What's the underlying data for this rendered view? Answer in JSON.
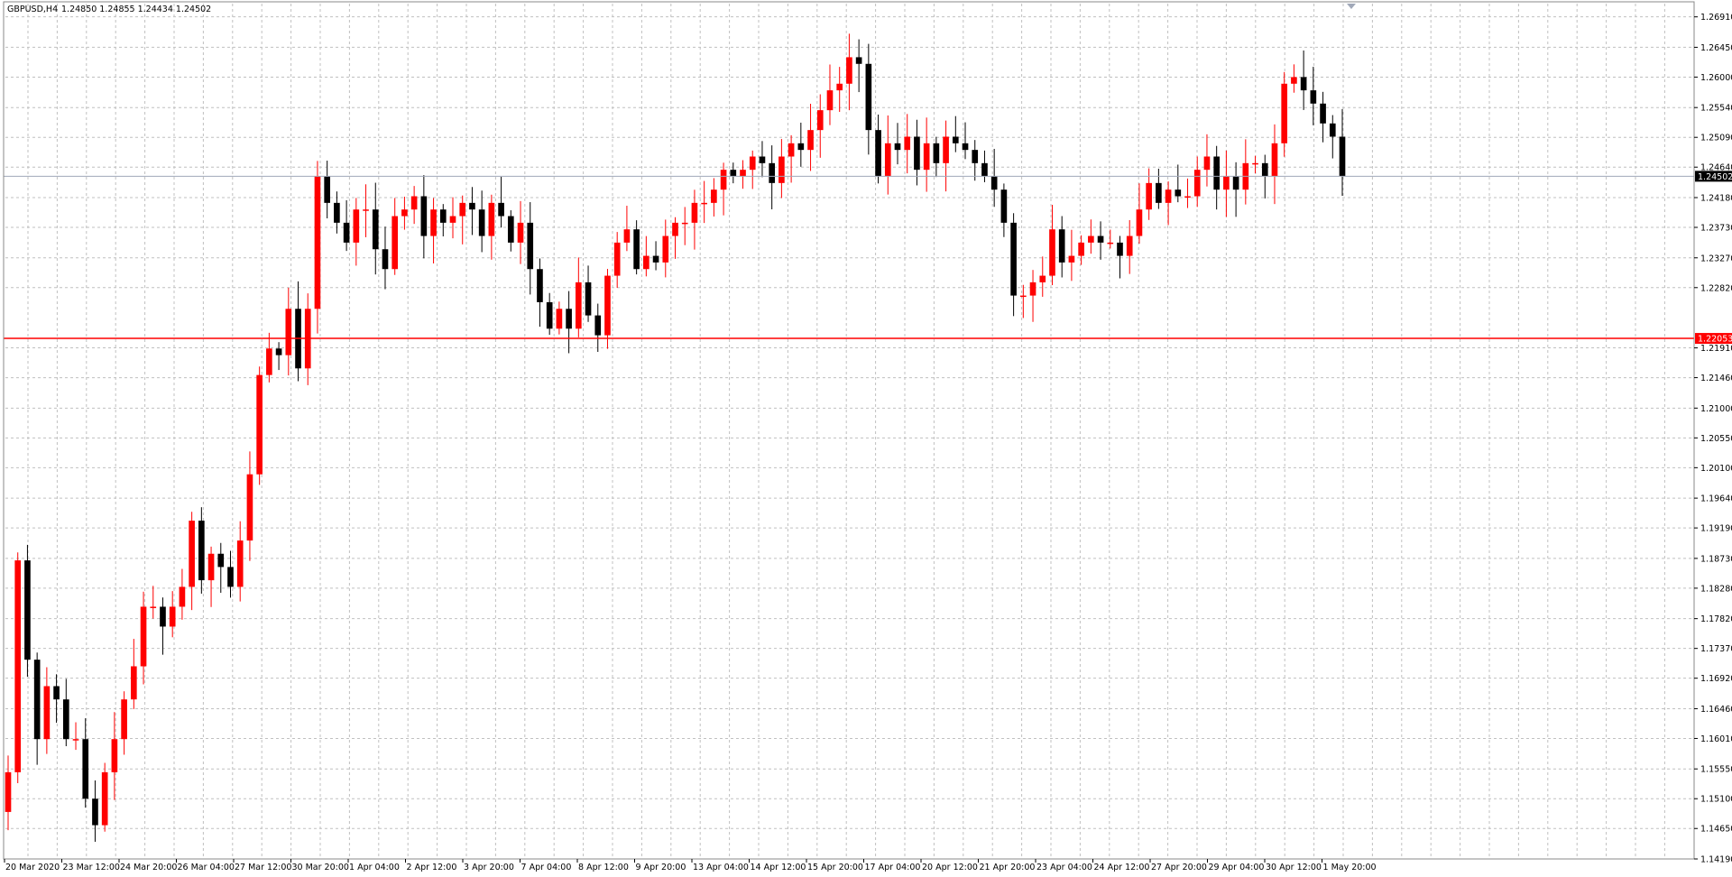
{
  "header": {
    "symbol": "GBPUSD,H4",
    "ohlc": "1.24850 1.24855 1.24434 1.24502"
  },
  "colors": {
    "bull": "#ff0000",
    "bear": "#000000",
    "grid": "#c0c0c0",
    "background": "#ffffff",
    "level_line": "#ff0000",
    "bid_line": "#a0a8b8"
  },
  "chart_data": {
    "type": "candlestick",
    "symbol": "GBPUSD",
    "timeframe": "H4",
    "ylim": [
      1.1419,
      1.2711
    ],
    "grid": true,
    "price_ticks": [
      "1.26910",
      "1.26450",
      "1.26000",
      "1.25540",
      "1.25090",
      "1.24640",
      "1.24180",
      "1.23730",
      "1.23270",
      "1.22820",
      "1.21910",
      "1.21460",
      "1.21000",
      "1.20550",
      "1.20100",
      "1.19640",
      "1.19190",
      "1.18730",
      "1.18280",
      "1.17820",
      "1.17370",
      "1.16920",
      "1.16460",
      "1.16010",
      "1.15550",
      "1.15100",
      "1.14650",
      "1.14190"
    ],
    "time_labels": [
      "20 Mar 2020",
      "23 Mar 12:00",
      "24 Mar 20:00",
      "26 Mar 04:00",
      "27 Mar 12:00",
      "30 Mar 20:00",
      "1 Apr 04:00",
      "2 Apr 12:00",
      "3 Apr 20:00",
      "7 Apr 04:00",
      "8 Apr 12:00",
      "9 Apr 20:00",
      "13 Apr 04:00",
      "14 Apr 12:00",
      "15 Apr 20:00",
      "17 Apr 04:00",
      "20 Apr 12:00",
      "21 Apr 20:00",
      "23 Apr 04:00",
      "24 Apr 12:00",
      "27 Apr 20:00",
      "29 Apr 04:00",
      "30 Apr 12:00",
      "1 May 20:00"
    ],
    "current_price": "1.24502",
    "level_price": "1.22053",
    "anchors": [
      1.155,
      1.187,
      1.172,
      1.16,
      1.168,
      1.166,
      1.16,
      1.16,
      1.151,
      1.147,
      1.155,
      1.16,
      1.166,
      1.171,
      1.18,
      1.18,
      1.177,
      1.18,
      1.183,
      1.193,
      1.184,
      1.188,
      1.186,
      1.183,
      1.19,
      1.2,
      1.215,
      1.219,
      1.218,
      1.225,
      1.216,
      1.225,
      1.245,
      1.241,
      1.238,
      1.235,
      1.24,
      1.24,
      1.234,
      1.231,
      1.239,
      1.24,
      1.242,
      1.236,
      1.24,
      1.238,
      1.239,
      1.241,
      1.24,
      1.236,
      1.241,
      1.239,
      1.235,
      1.238,
      1.231,
      1.226,
      1.222,
      1.225,
      1.222,
      1.229,
      1.224,
      1.221,
      1.23,
      1.235,
      1.237,
      1.231,
      1.233,
      1.232,
      1.236,
      1.238,
      1.238,
      1.241,
      1.241,
      1.243,
      1.246,
      1.245,
      1.246,
      1.248,
      1.247,
      1.244,
      1.248,
      1.25,
      1.249,
      1.252,
      1.255,
      1.258,
      1.259,
      1.263,
      1.262,
      1.252,
      1.245,
      1.25,
      1.249,
      1.251,
      1.246,
      1.25,
      1.247,
      1.251,
      1.25,
      1.249,
      1.247,
      1.245,
      1.243,
      1.238,
      1.227,
      1.227,
      1.229,
      1.23,
      1.237,
      1.232,
      1.233,
      1.235,
      1.236,
      1.235,
      1.235,
      1.233,
      1.236,
      1.24,
      1.244,
      1.241,
      1.243,
      1.242,
      1.242,
      1.246,
      1.248,
      1.243,
      1.245,
      1.243,
      1.247,
      1.247,
      1.245,
      1.25,
      1.259,
      1.26,
      1.258,
      1.256,
      1.253,
      1.251,
      1.245
    ]
  }
}
